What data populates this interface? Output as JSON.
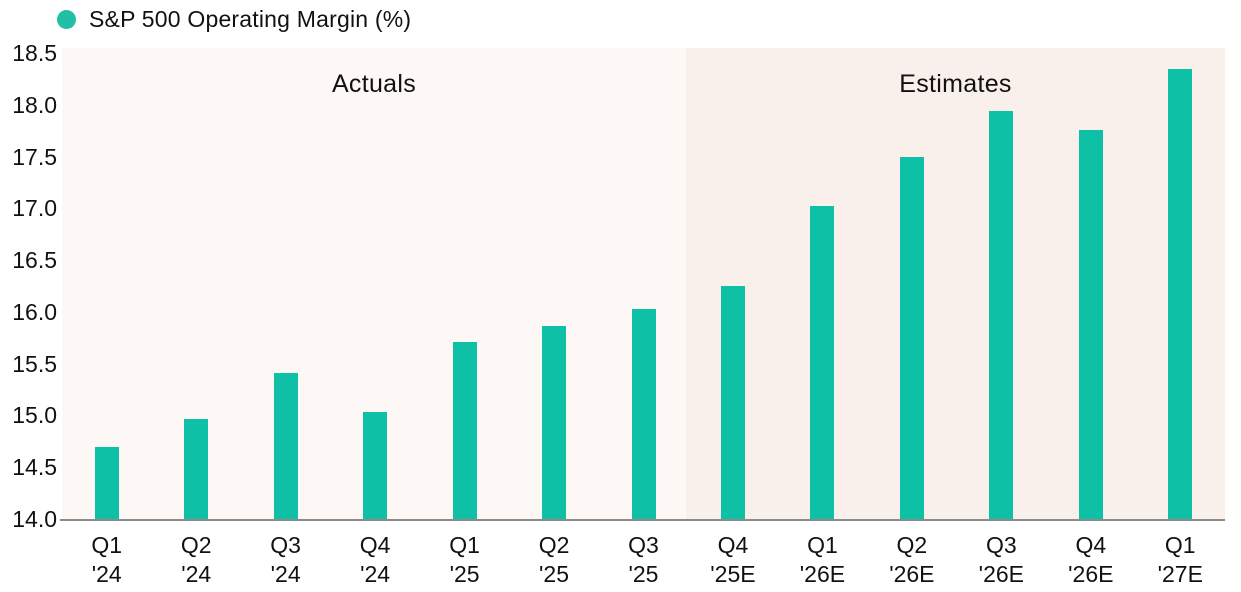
{
  "legend": {
    "label": "S&P 500 Operating Margin (%)"
  },
  "regions": {
    "actuals_label": "Actuals",
    "estimates_label": "Estimates"
  },
  "colors": {
    "bar": "#0ec0a6",
    "legend_dot": "#22bfa4",
    "actuals_bg": "#fdf8f5",
    "estimates_bg": "#f9efeb",
    "axis_line": "#8c8c8c",
    "text": "#111111"
  },
  "chart_data": {
    "type": "bar",
    "title": "S&P 500 Operating Margin (%)",
    "categories": [
      "Q1 '24",
      "Q2 '24",
      "Q3 '24",
      "Q4 '24",
      "Q1 '25",
      "Q2 '25",
      "Q3 '25",
      "Q4 '25E",
      "Q1 '26E",
      "Q2 '26E",
      "Q3 '26E",
      "Q4 '26E",
      "Q1 '27E"
    ],
    "values": [
      14.7,
      14.97,
      15.41,
      15.03,
      15.71,
      15.86,
      16.03,
      16.25,
      17.02,
      17.5,
      17.94,
      17.76,
      18.35
    ],
    "xlabel": "",
    "ylabel": "",
    "ylim": [
      14.0,
      18.5
    ],
    "ytick_step": 0.5,
    "ytick_labels": [
      "14.0",
      "14.5",
      "15.0",
      "15.5",
      "16.0",
      "16.5",
      "17.0",
      "17.5",
      "18.0",
      "18.5"
    ],
    "grid": false,
    "legend_position": "top-left",
    "annotations": [
      {
        "text": "Actuals",
        "applies_to": "Q1 '24 through Q3 '25"
      },
      {
        "text": "Estimates",
        "applies_to": "Q4 '25E through Q1 '27E"
      }
    ],
    "actuals_count": 7
  }
}
